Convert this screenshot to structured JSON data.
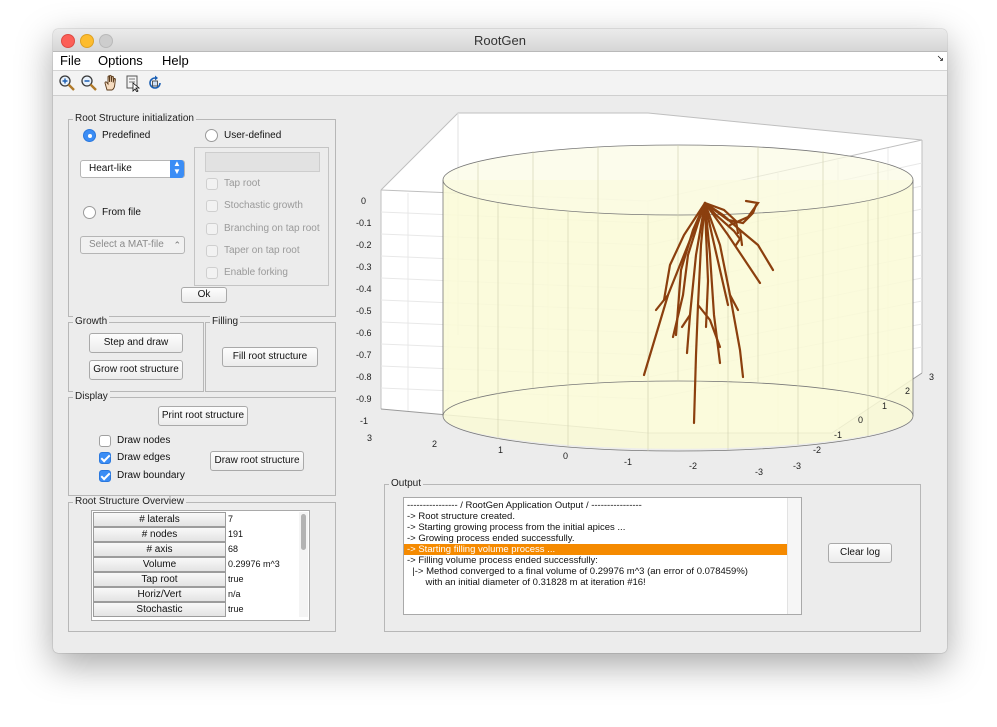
{
  "window": {
    "title": "RootGen"
  },
  "menubar": {
    "items": [
      "File",
      "Options",
      "Help"
    ]
  },
  "toolbar": {
    "tools": [
      "zoom-in-icon",
      "zoom-out-icon",
      "pan-hand-icon",
      "data-cursor-icon",
      "rotate-3d-icon"
    ]
  },
  "init_panel": {
    "title": "Root Structure initialization",
    "predefined_label": "Predefined",
    "user_defined_label": "User-defined",
    "shape_value": "Heart-like",
    "from_file_label": "From file",
    "mat_file_placeholder": "Select a MAT-file",
    "options": [
      "Tap root",
      "Stochastic growth",
      "Branching on tap root",
      "Taper on tap root",
      "Enable forking"
    ],
    "ok_label": "Ok"
  },
  "growth_panel": {
    "title": "Growth",
    "step_label": "Step and draw",
    "grow_label": "Grow root structure"
  },
  "filling_panel": {
    "title": "Filling",
    "fill_label": "Fill root structure"
  },
  "display_panel": {
    "title": "Display",
    "print_label": "Print root structure",
    "draw_nodes": "Draw nodes",
    "draw_edges": "Draw edges",
    "draw_boundary": "Draw boundary",
    "draw_root_label": "Draw root structure"
  },
  "overview_panel": {
    "title": "Root Structure Overview",
    "rows": [
      {
        "name": "# laterals",
        "value": "7"
      },
      {
        "name": "# nodes",
        "value": "191"
      },
      {
        "name": "# axis",
        "value": "68"
      },
      {
        "name": "Volume",
        "value": "0.29976 m^3"
      },
      {
        "name": "Tap root",
        "value": "true"
      },
      {
        "name": "Horiz/Vert",
        "value": "n/a"
      },
      {
        "name": "Stochastic",
        "value": "true"
      }
    ]
  },
  "plot": {
    "z_ticks": [
      "0",
      "-0.1",
      "-0.2",
      "-0.3",
      "-0.4",
      "-0.5",
      "-0.6",
      "-0.7",
      "-0.8",
      "-0.9",
      "-1"
    ],
    "x_ticks": [
      "3",
      "2",
      "1",
      "0",
      "-1",
      "-2",
      "-3"
    ],
    "y_ticks": [
      "-3",
      "-2",
      "-1",
      "0",
      "1",
      "2",
      "3"
    ],
    "colors": {
      "root": "#8b3f0e",
      "boundary_fill": "#fafad6",
      "highlight": "#f58a00"
    }
  },
  "output_panel": {
    "title": "Output",
    "lines": [
      "---------------- / RootGen Application Output / ----------------",
      "-> Root structure created.",
      "-> Starting growing process from the initial apices ...",
      "-> Growing process ended successfully.",
      "-> Starting filling volume process ...",
      "-> Filling volume process ended successfully:",
      "  |-> Method converged to a final volume of 0.29976 m^3 (an error of 0.078459%)",
      "       with an initial diameter of 0.31828 m at iteration #16!"
    ],
    "clear_label": "Clear log"
  }
}
